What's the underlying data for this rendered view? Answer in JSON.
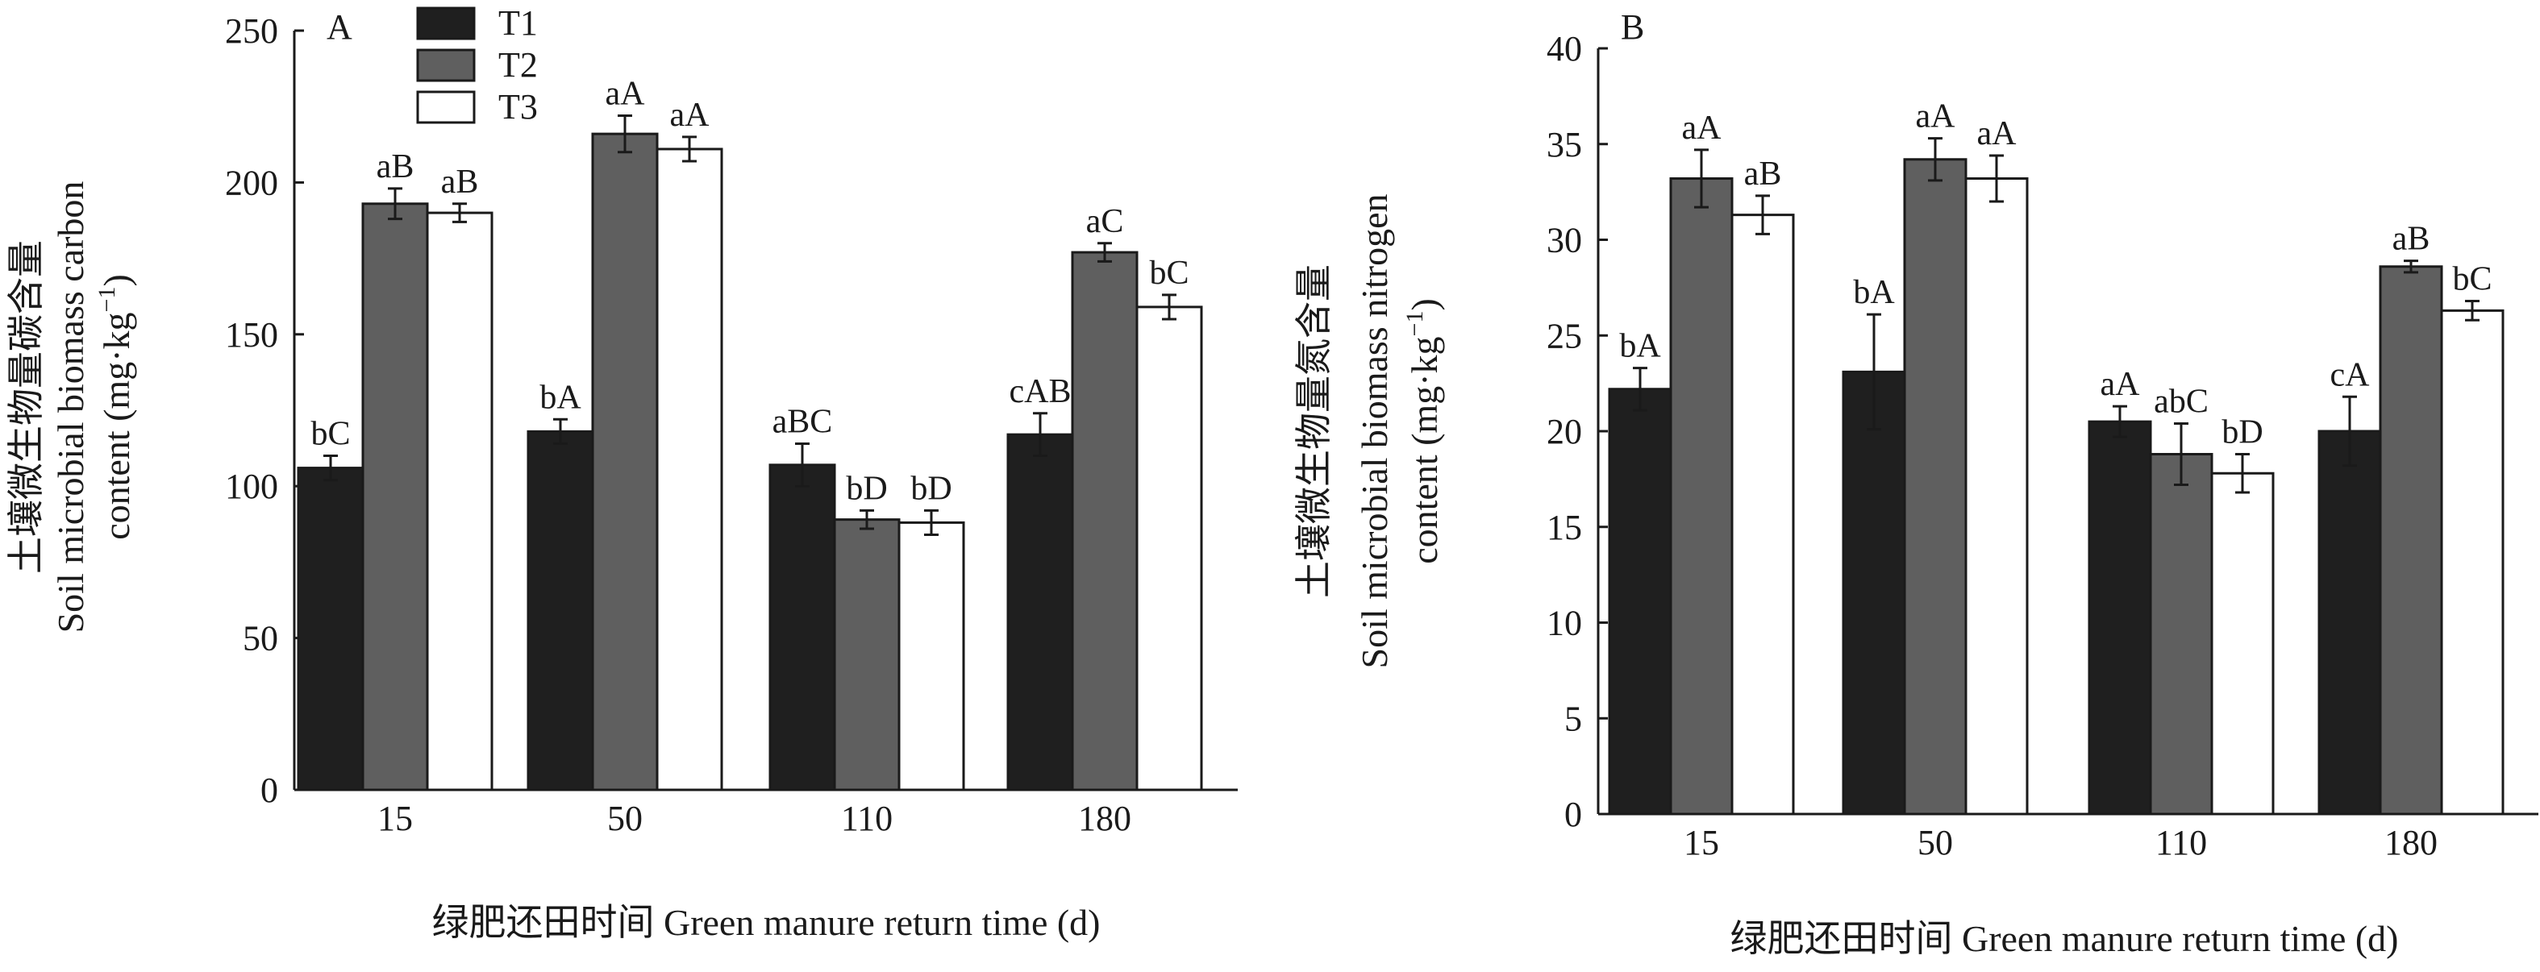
{
  "chart_data": [
    {
      "type": "bar",
      "panel_label": "A",
      "categories": [
        "15",
        "50",
        "110",
        "180"
      ],
      "series": [
        {
          "name": "T1",
          "color": "#1f1f1f",
          "values": [
            106,
            118,
            107,
            117
          ],
          "errors": [
            4,
            4,
            7,
            7
          ],
          "labels": [
            "bC",
            "bA",
            "aBC",
            "cAB"
          ]
        },
        {
          "name": "T2",
          "color": "#5f5f5f",
          "values": [
            193,
            216,
            89,
            177
          ],
          "errors": [
            5,
            6,
            3,
            3
          ],
          "labels": [
            "aB",
            "aA",
            "bD",
            "aC"
          ]
        },
        {
          "name": "T3",
          "color": "#ffffff",
          "values": [
            190,
            211,
            88,
            159
          ],
          "errors": [
            3,
            4,
            4,
            4
          ],
          "labels": [
            "aB",
            "aA",
            "bD",
            "bC"
          ]
        }
      ],
      "ylim": [
        0,
        250
      ],
      "yticks": [
        "0",
        "50",
        "100",
        "150",
        "200",
        "250"
      ],
      "ylabel_lines": [
        "土壤微生物量碳含量",
        "Soil microbial biomass carbon",
        "content (mg·kg",
        "−1",
        ")"
      ],
      "xlabel": "绿肥还田时间 Green manure return time (d)",
      "legend": {
        "placement": "top-left",
        "entries": [
          "T1",
          "T2",
          "T3"
        ]
      }
    },
    {
      "type": "bar",
      "panel_label": "B",
      "categories": [
        "15",
        "50",
        "110",
        "180"
      ],
      "series": [
        {
          "name": "T1",
          "color": "#1f1f1f",
          "values": [
            22.2,
            23.1,
            20.5,
            20.0
          ],
          "errors": [
            1.1,
            3.0,
            0.8,
            1.8
          ],
          "labels": [
            "bA",
            "bA",
            "aA",
            "cA"
          ]
        },
        {
          "name": "T2",
          "color": "#5f5f5f",
          "values": [
            33.2,
            34.2,
            18.8,
            28.6
          ],
          "errors": [
            1.5,
            1.1,
            1.6,
            0.3
          ],
          "labels": [
            "aA",
            "aA",
            "abC",
            "aB"
          ]
        },
        {
          "name": "T3",
          "color": "#ffffff",
          "values": [
            31.3,
            33.2,
            17.8,
            26.3
          ],
          "errors": [
            1.0,
            1.2,
            1.0,
            0.5
          ],
          "labels": [
            "aB",
            "aA",
            "bD",
            "bC"
          ]
        }
      ],
      "ylim": [
        0,
        40
      ],
      "yticks": [
        "0",
        "5",
        "10",
        "15",
        "20",
        "25",
        "30",
        "35",
        "40"
      ],
      "ylabel_lines": [
        "土壤微生物量氮含量",
        "Soil microbial biomass nitrogen",
        "content (mg·kg",
        "−1",
        ")"
      ],
      "xlabel": "绿肥还田时间 Green manure return time (d)",
      "legend": null
    }
  ]
}
